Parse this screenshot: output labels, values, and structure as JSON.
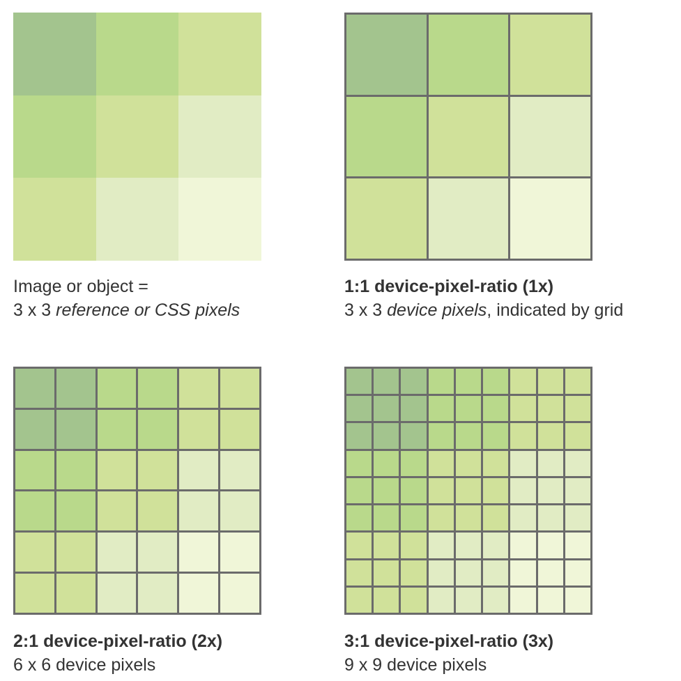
{
  "colors": [
    [
      "#a3c48e",
      "#b9d98b",
      "#d0e19a"
    ],
    [
      "#b9d98b",
      "#d0e19a",
      "#e1ecc4"
    ],
    [
      "#d0e19a",
      "#e1ecc4",
      "#f0f6d8"
    ]
  ],
  "grid_color": "#6b6b6b",
  "panels": [
    {
      "id": "reference",
      "subdivision": 1,
      "bordered": false,
      "caption": {
        "line1": "Image or object =",
        "line2_prefix": "3 x 3 ",
        "line2_emph": "reference or CSS pixels",
        "line2_suffix": ""
      }
    },
    {
      "id": "ratio-1x",
      "subdivision": 1,
      "bordered": true,
      "caption": {
        "line1": "1:1 device-pixel-ratio (1x)",
        "line2_prefix": "3 x 3 ",
        "line2_emph": "device pixels",
        "line2_suffix": ", indicated by grid"
      }
    },
    {
      "id": "ratio-2x",
      "subdivision": 2,
      "bordered": true,
      "caption": {
        "line1": "2:1 device-pixel-ratio (2x)",
        "line2_prefix": "6 x 6 device pixels",
        "line2_emph": "",
        "line2_suffix": ""
      }
    },
    {
      "id": "ratio-3x",
      "subdivision": 3,
      "bordered": true,
      "caption": {
        "line1": "3:1 device-pixel-ratio (3x)",
        "line2_prefix": "9 x 9 device pixels",
        "line2_emph": "",
        "line2_suffix": ""
      }
    }
  ]
}
